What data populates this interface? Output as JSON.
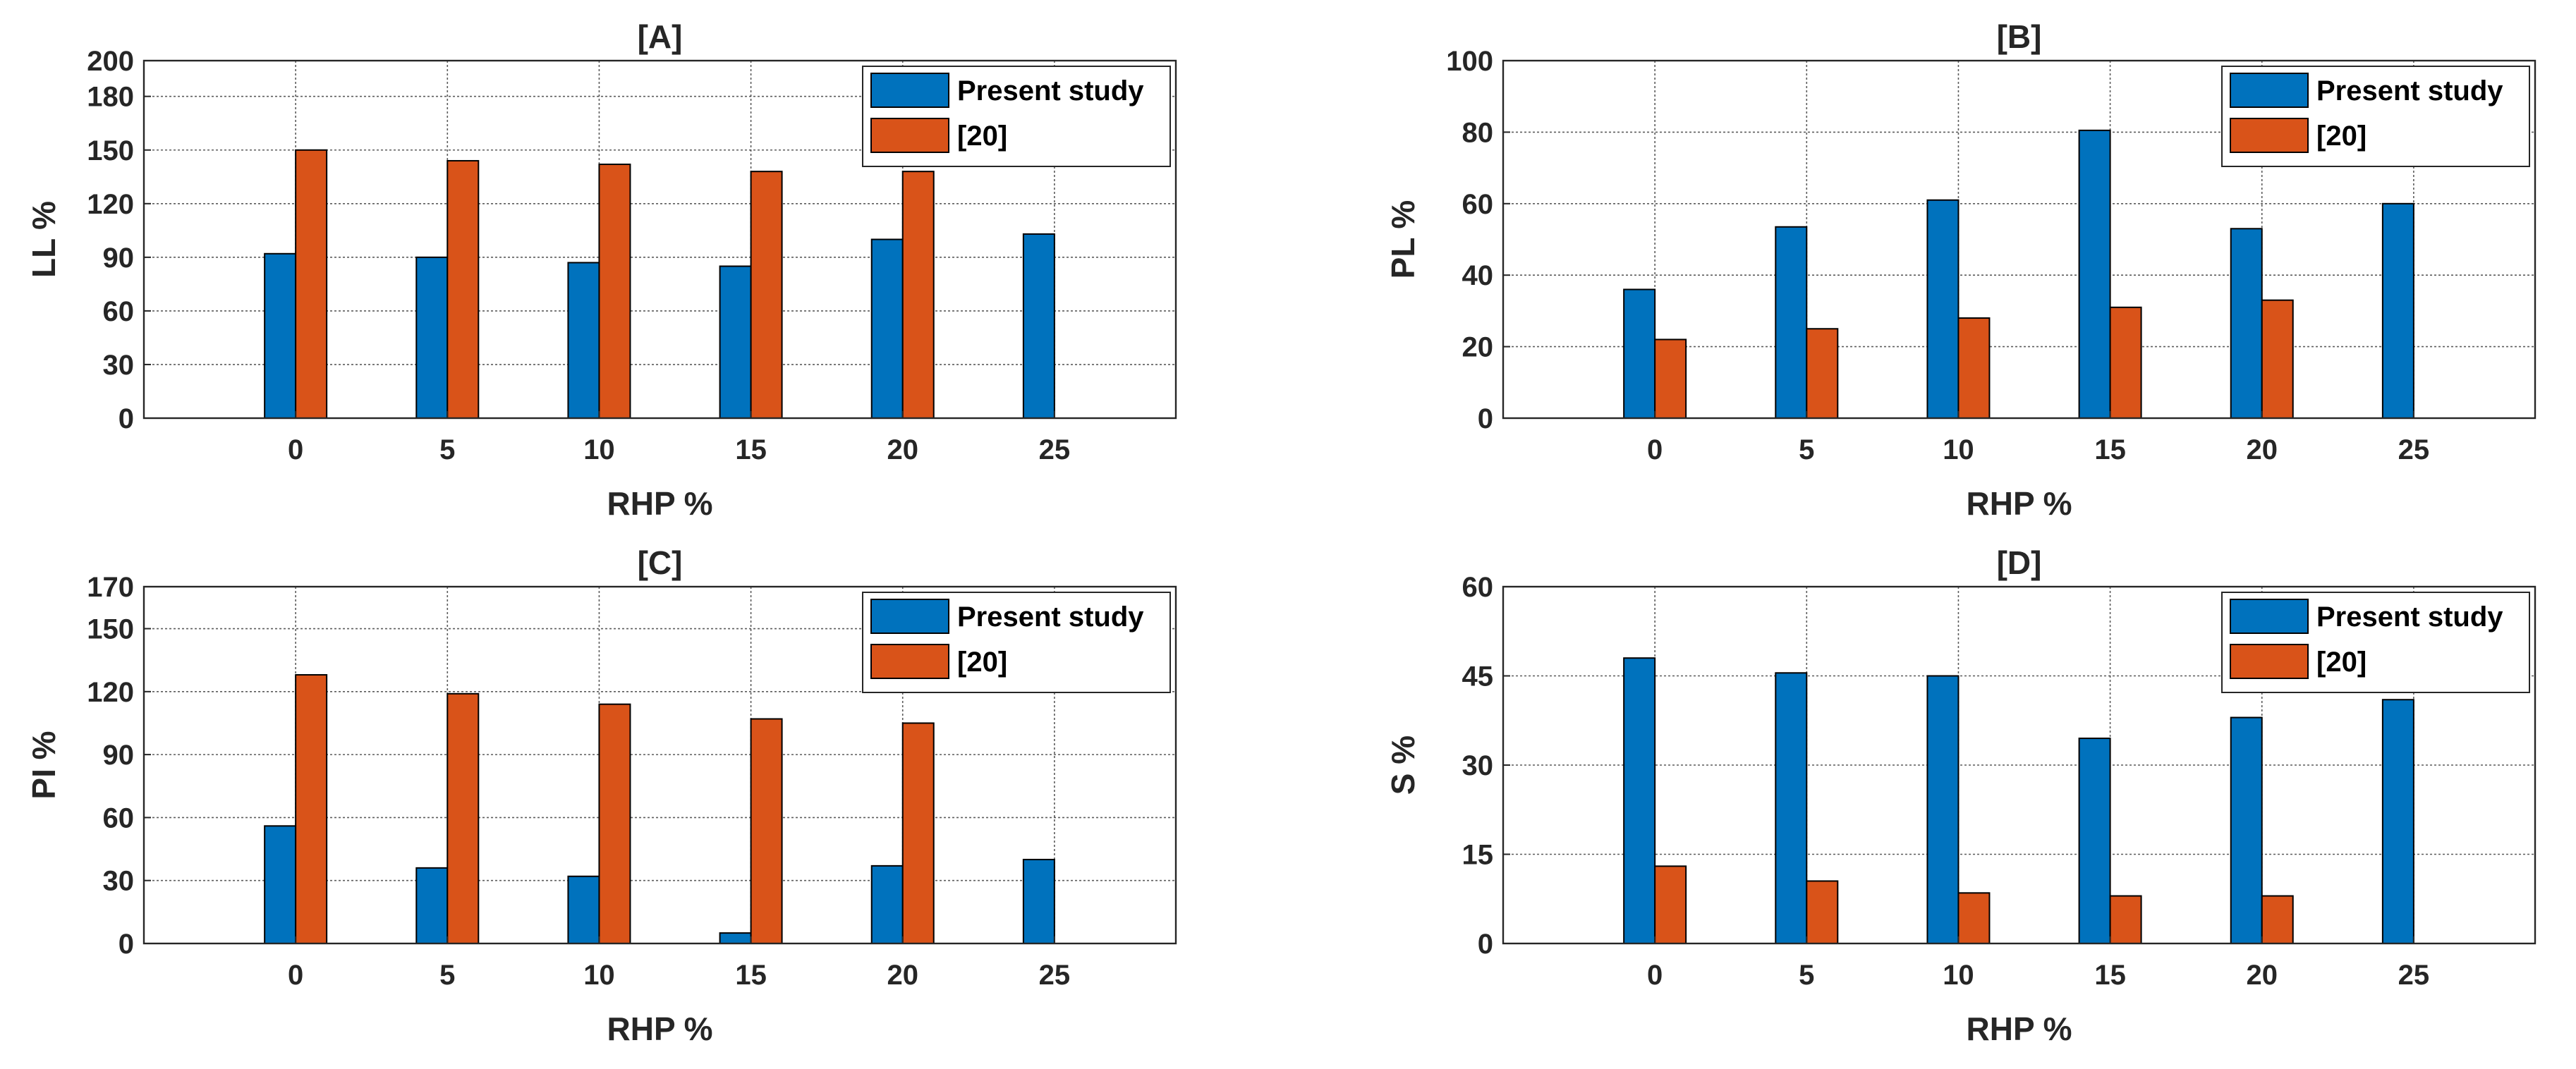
{
  "colors": {
    "present_study": "#0072BD",
    "reference": "#D95319",
    "background": "#FFFFFF",
    "axis": "#262626"
  },
  "chart_data": [
    {
      "panel": "A",
      "type": "bar",
      "title": "[A]",
      "xlabel": "RHP %",
      "ylabel": "LL %",
      "categories": [
        "0",
        "5",
        "10",
        "15",
        "20",
        "25"
      ],
      "xlim": [
        -5,
        29
      ],
      "ylim": [
        0,
        200
      ],
      "yticks": [
        0,
        30,
        60,
        90,
        120,
        150,
        180,
        200
      ],
      "grid": true,
      "legend_location": "top-right",
      "series": [
        {
          "name": "Present study",
          "values": [
            92,
            90,
            87,
            85,
            100,
            103
          ]
        },
        {
          "name": "[20]",
          "values": [
            150,
            144,
            142,
            138,
            138,
            null
          ]
        }
      ]
    },
    {
      "panel": "B",
      "type": "bar",
      "title": "[B]",
      "xlabel": "RHP %",
      "ylabel": "PL %",
      "categories": [
        "0",
        "5",
        "10",
        "15",
        "20",
        "25"
      ],
      "xlim": [
        -5,
        29
      ],
      "ylim": [
        0,
        100
      ],
      "yticks": [
        0,
        20,
        40,
        60,
        80,
        100
      ],
      "grid": true,
      "legend_location": "top-right",
      "series": [
        {
          "name": "Present study",
          "values": [
            36,
            53.5,
            61,
            80.5,
            53,
            60
          ]
        },
        {
          "name": "[20]",
          "values": [
            22,
            25,
            28,
            31,
            33,
            null
          ]
        }
      ]
    },
    {
      "panel": "C",
      "type": "bar",
      "title": "[C]",
      "xlabel": "RHP %",
      "ylabel": "PI %",
      "categories": [
        "0",
        "5",
        "10",
        "15",
        "20",
        "25"
      ],
      "xlim": [
        -5,
        29
      ],
      "ylim": [
        0,
        170
      ],
      "yticks": [
        0,
        30,
        60,
        90,
        120,
        150,
        170
      ],
      "grid": true,
      "legend_location": "top-right",
      "series": [
        {
          "name": "Present study",
          "values": [
            56,
            36,
            32,
            5,
            37,
            40
          ]
        },
        {
          "name": "[20]",
          "values": [
            128,
            119,
            114,
            107,
            105,
            null
          ]
        }
      ]
    },
    {
      "panel": "D",
      "type": "bar",
      "title": "[D]",
      "xlabel": "RHP %",
      "ylabel": "S %",
      "categories": [
        "0",
        "5",
        "10",
        "15",
        "20",
        "25"
      ],
      "xlim": [
        -5,
        29
      ],
      "ylim": [
        0,
        60
      ],
      "yticks": [
        0,
        15,
        30,
        45,
        60
      ],
      "grid": true,
      "legend_location": "top-right",
      "series": [
        {
          "name": "Present study",
          "values": [
            48,
            45.5,
            45,
            34.5,
            38,
            41
          ]
        },
        {
          "name": "[20]",
          "values": [
            13,
            10.5,
            8.5,
            8,
            8,
            null
          ]
        }
      ]
    }
  ]
}
